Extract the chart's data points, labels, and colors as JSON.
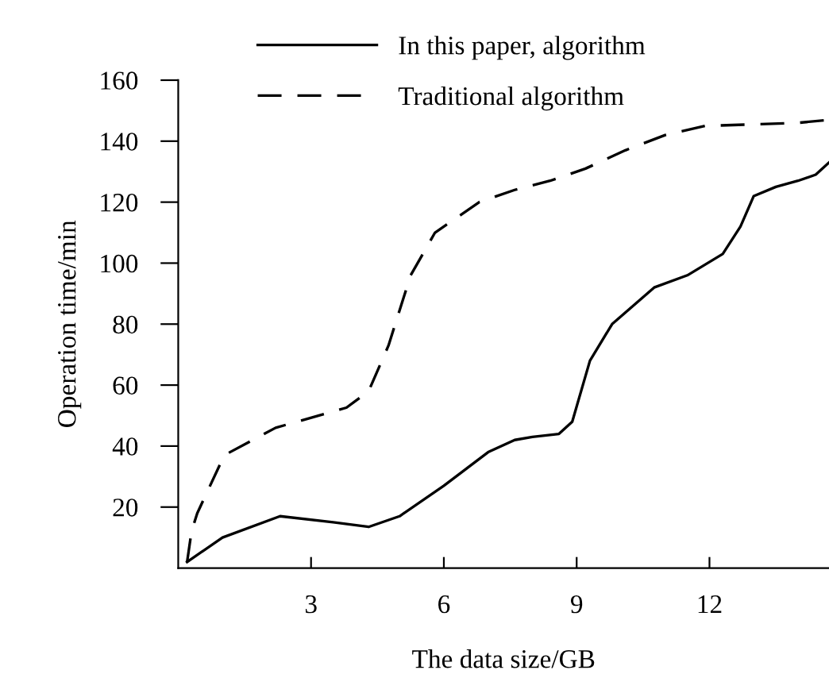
{
  "chart_data": {
    "type": "line",
    "xlabel": "The data size/GB",
    "ylabel": "Operation time/min",
    "xlim": [
      0,
      14.7
    ],
    "xticks": [
      3,
      6,
      9,
      12
    ],
    "ylim": [
      0,
      160
    ],
    "yticks": [
      20,
      40,
      60,
      80,
      100,
      120,
      140,
      160
    ],
    "grid": false,
    "legend": "top",
    "marker": "none",
    "series": [
      {
        "name": "In this paper, algorithm",
        "color": "#000000",
        "line_style": "solid",
        "x": [
          0.2,
          1,
          2.3,
          3.5,
          4.3,
          5,
          6,
          7,
          7.6,
          8,
          8.6,
          8.9,
          9.3,
          9.8,
          10.75,
          11.5,
          12.3,
          12.7,
          13.0,
          13.5,
          14,
          14.4,
          14.7
        ],
        "values": [
          2,
          10,
          17,
          15,
          13.5,
          17,
          27,
          38,
          42,
          43,
          44,
          48,
          68,
          80,
          92,
          96,
          103,
          112,
          122,
          125,
          127,
          129,
          133
        ]
      },
      {
        "name": "Traditional algorithm",
        "color": "#000000",
        "line_style": "dashed",
        "x": [
          0.2,
          0.3,
          0.43,
          1.04,
          2.2,
          3.8,
          4.3,
          4.75,
          5.25,
          5.8,
          6.8,
          7.6,
          8.4,
          9.2,
          10.1,
          11,
          11.9,
          13,
          14,
          14.7
        ],
        "values": [
          2,
          12,
          18,
          37,
          46,
          52.6,
          58,
          73,
          96,
          110,
          120,
          124,
          127,
          131,
          137,
          142,
          145,
          145.5,
          146,
          147
        ]
      }
    ]
  }
}
